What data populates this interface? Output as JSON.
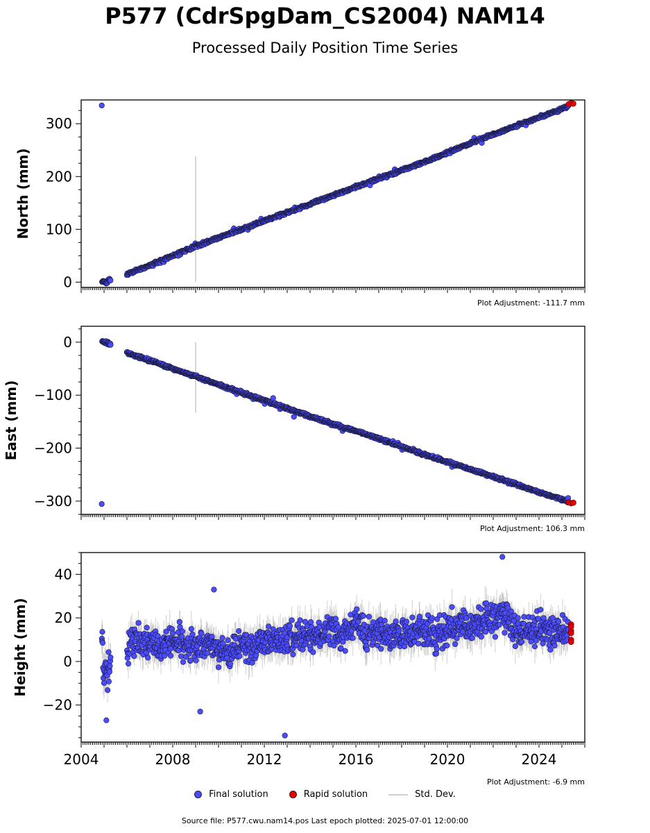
{
  "title": "P577 (CdrSpgDam_CS2004) NAM14",
  "subtitle": "Processed Daily Position Time Series",
  "legend": {
    "final_label": "Final solution",
    "rapid_label": "Rapid solution",
    "std_label": "Std. Dev."
  },
  "footer": "Source file: P577.cwu.nam14.pos  Last epoch plotted: 2025-07-01 12:00:00",
  "colors": {
    "final": "#4b4bff",
    "rapid": "#e60000",
    "std": "#c8c8c8"
  },
  "chart_data": [
    {
      "type": "scatter",
      "ylabel": "North (mm)",
      "ylim": [
        -10,
        345
      ],
      "xlim": [
        2004.0,
        2026.0
      ],
      "yticks": [
        0,
        100,
        200,
        300
      ],
      "adjustment": "Plot Adjustment: -111.7 mm",
      "final_series": {
        "name": "Final solution",
        "x": [
          2004.9,
          2005.0,
          2005.1,
          2005.2,
          2006.0,
          2007.0,
          2008.0,
          2009.0,
          2010.0,
          2011.0,
          2012.0,
          2013.0,
          2014.0,
          2015.0,
          2016.0,
          2017.0,
          2018.0,
          2019.0,
          2020.0,
          2021.0,
          2022.0,
          2023.0,
          2024.0,
          2025.0,
          2025.4
        ],
        "y": [
          0,
          2,
          -2,
          4,
          15,
          32,
          50,
          68,
          84,
          100,
          116,
          132,
          148,
          164,
          180,
          196,
          212,
          228,
          245,
          263,
          280,
          296,
          312,
          328,
          336
        ]
      },
      "rapid_series": {
        "name": "Rapid solution",
        "x": [
          2025.3,
          2025.4,
          2025.5
        ],
        "y": [
          337,
          339,
          338
        ]
      },
      "std_spike": {
        "x": 2009.0,
        "y": [
          0,
          238
        ]
      }
    },
    {
      "type": "scatter",
      "ylabel": "East (mm)",
      "ylim": [
        -325,
        30
      ],
      "xlim": [
        2004.0,
        2026.0
      ],
      "yticks": [
        0,
        -100,
        -200,
        -300
      ],
      "adjustment": "Plot Adjustment: 106.3 mm",
      "final_series": {
        "name": "Final solution",
        "x": [
          2004.9,
          2005.0,
          2005.1,
          2005.2,
          2006.0,
          2007.0,
          2008.0,
          2009.0,
          2010.0,
          2011.0,
          2012.0,
          2013.0,
          2014.0,
          2015.0,
          2016.0,
          2017.0,
          2018.0,
          2019.0,
          2020.0,
          2021.0,
          2022.0,
          2023.0,
          2024.0,
          2025.0,
          2025.4
        ],
        "y": [
          2,
          0,
          -1,
          -3,
          -20,
          -35,
          -50,
          -65,
          -80,
          -95,
          -110,
          -125,
          -140,
          -155,
          -168,
          -182,
          -197,
          -212,
          -226,
          -240,
          -254,
          -268,
          -283,
          -297,
          -303
        ]
      },
      "rapid_series": {
        "name": "Rapid solution",
        "x": [
          2025.3,
          2025.4,
          2025.5
        ],
        "y": [
          -302,
          -304,
          -303
        ]
      },
      "std_spike": {
        "x": 2009.0,
        "y": [
          -133,
          0
        ]
      }
    },
    {
      "type": "scatter",
      "ylabel": "Height (mm)",
      "ylim": [
        -37,
        50
      ],
      "xlim": [
        2004.0,
        2026.0
      ],
      "yticks": [
        40,
        20,
        0,
        -20
      ],
      "xticks": [
        "2004",
        "2008",
        "2012",
        "2016",
        "2020",
        "2024"
      ],
      "adjustment": "Plot Adjustment: -6.9 mm",
      "final_series": {
        "name": "Final solution",
        "x": [
          2004.95,
          2005.1,
          2006.0,
          2006.5,
          2007.0,
          2007.5,
          2008.0,
          2008.5,
          2009.0,
          2009.5,
          2010.0,
          2010.5,
          2011.0,
          2011.5,
          2012.0,
          2012.5,
          2013.0,
          2013.5,
          2014.0,
          2014.5,
          2015.0,
          2015.5,
          2016.0,
          2016.5,
          2017.0,
          2017.5,
          2018.0,
          2018.5,
          2019.0,
          2019.5,
          2020.0,
          2020.5,
          2021.0,
          2021.5,
          2022.0,
          2022.5,
          2023.0,
          2023.5,
          2024.0,
          2024.5,
          2025.0
        ],
        "y": [
          -2,
          -5,
          5,
          9,
          10,
          7,
          11,
          8,
          5,
          8,
          6,
          4,
          7,
          5,
          10,
          8,
          10,
          12,
          11,
          13,
          15,
          13,
          16,
          12,
          14,
          11,
          12,
          13,
          14,
          12,
          15,
          17,
          16,
          18,
          22,
          20,
          15,
          14,
          16,
          15,
          14
        ]
      },
      "outliers": {
        "x": [
          2009.2,
          2005.1,
          2012.9,
          2022.4,
          2009.8
        ],
        "y": [
          -23,
          -27,
          -34,
          48,
          33
        ]
      },
      "rapid_series": {
        "name": "Rapid solution",
        "x": [
          2025.4,
          2025.4,
          2025.4,
          2025.4,
          2025.4,
          2025.4
        ],
        "y": [
          17,
          16,
          14,
          13,
          10,
          9
        ]
      }
    }
  ]
}
